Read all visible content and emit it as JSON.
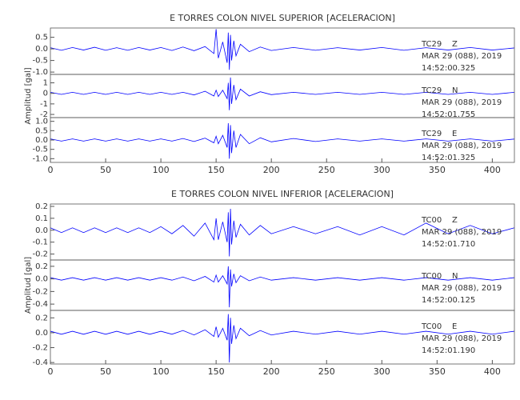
{
  "chart_data": [
    {
      "type": "line",
      "title": "E TORRES COLON NIVEL SUPERIOR [ACELERACION]",
      "color": "#0000ff",
      "annotations": [
        "TC29    Z",
        "MAR 29 (088), 2019",
        "14:52:00.325"
      ],
      "x": [
        0,
        10,
        20,
        30,
        40,
        50,
        60,
        70,
        80,
        90,
        100,
        110,
        120,
        130,
        140,
        148,
        150,
        152,
        156,
        160,
        161,
        162,
        163,
        164,
        166,
        168,
        172,
        180,
        190,
        200,
        220,
        240,
        260,
        280,
        300,
        320,
        340,
        360,
        380,
        400,
        420
      ],
      "values": [
        0.05,
        -0.06,
        0.06,
        -0.05,
        0.07,
        -0.06,
        0.05,
        -0.06,
        0.06,
        -0.05,
        0.06,
        -0.07,
        0.08,
        -0.08,
        0.1,
        -0.2,
        0.85,
        -0.4,
        0.3,
        -0.6,
        0.7,
        -0.9,
        0.6,
        -0.5,
        0.35,
        -0.3,
        0.2,
        -0.12,
        0.08,
        -0.07,
        0.06,
        -0.06,
        0.05,
        -0.05,
        0.06,
        -0.06,
        0.05,
        -0.05,
        0.06,
        -0.05,
        0.04
      ],
      "xlim": [
        0,
        420
      ],
      "ylim": [
        -1.1,
        0.9
      ],
      "yticks": [
        {
          "value": -1.0,
          "label": "-1.0"
        },
        -0.5,
        {
          "value": 0.0,
          "label": "0.0"
        },
        0.5
      ]
    },
    {
      "type": "line",
      "color": "#0000ff",
      "ylabel": "Amplitud [gal]",
      "annotations": [
        "TC29    N",
        "MAR 29 (088), 2019",
        "14:52:01.755"
      ],
      "x": [
        0,
        10,
        20,
        30,
        40,
        50,
        60,
        70,
        80,
        90,
        100,
        110,
        120,
        130,
        140,
        148,
        150,
        152,
        156,
        160,
        161,
        162,
        163,
        164,
        166,
        168,
        172,
        180,
        190,
        200,
        220,
        240,
        260,
        280,
        300,
        320,
        340,
        360,
        380,
        400,
        420
      ],
      "values": [
        0.1,
        -0.1,
        0.1,
        -0.1,
        0.1,
        -0.1,
        0.1,
        -0.1,
        0.1,
        -0.1,
        0.1,
        -0.1,
        0.1,
        -0.15,
        0.2,
        -0.25,
        0.3,
        -0.3,
        0.3,
        -0.5,
        1.0,
        -1.6,
        1.5,
        -1.0,
        0.8,
        -0.6,
        0.4,
        -0.25,
        0.15,
        -0.12,
        0.1,
        -0.1,
        0.1,
        -0.1,
        0.1,
        -0.1,
        0.1,
        -0.1,
        0.1,
        -0.1,
        0.1
      ],
      "xlim": [
        0,
        420
      ],
      "ylim": [
        -2.3,
        1.8
      ],
      "yticks": [
        -2,
        -1,
        0,
        1
      ]
    },
    {
      "type": "line",
      "color": "#0000ff",
      "annotations": [
        "TC29    E",
        "MAR 29 (088), 2019",
        "14:52:01.325"
      ],
      "x": [
        0,
        10,
        20,
        30,
        40,
        50,
        60,
        70,
        80,
        90,
        100,
        110,
        120,
        130,
        140,
        148,
        150,
        152,
        156,
        160,
        161,
        162,
        163,
        164,
        166,
        168,
        172,
        180,
        190,
        200,
        220,
        240,
        260,
        280,
        300,
        320,
        340,
        360,
        380,
        400,
        420
      ],
      "values": [
        0.06,
        -0.06,
        0.06,
        -0.06,
        0.06,
        -0.06,
        0.06,
        -0.06,
        0.06,
        -0.06,
        0.06,
        -0.06,
        0.08,
        -0.08,
        0.1,
        -0.15,
        0.2,
        -0.2,
        0.25,
        -0.4,
        0.9,
        -1.0,
        0.8,
        -0.7,
        0.5,
        -0.4,
        0.3,
        -0.2,
        0.12,
        -0.1,
        0.08,
        -0.08,
        0.06,
        -0.06,
        0.06,
        -0.06,
        0.06,
        -0.06,
        0.06,
        -0.06,
        0.05
      ],
      "xlim": [
        0,
        420
      ],
      "ylim": [
        -1.2,
        1.2
      ],
      "yticks": [
        {
          "value": -1.0,
          "label": "-1.0"
        },
        -0.5,
        {
          "value": 0.0,
          "label": "0.0"
        },
        0.5,
        {
          "value": 1.0,
          "label": "1.0"
        }
      ],
      "xticks": [
        0,
        50,
        100,
        150,
        200,
        250,
        300,
        350,
        400
      ]
    },
    {
      "type": "line",
      "title": "E TORRES COLON NIVEL INFERIOR [ACELERACION]",
      "color": "#0000ff",
      "annotations": [
        "TC00    Z",
        "MAR 29 (088), 2019",
        "14:52:01.710"
      ],
      "x": [
        0,
        10,
        20,
        30,
        40,
        50,
        60,
        70,
        80,
        90,
        100,
        110,
        120,
        130,
        140,
        148,
        150,
        152,
        156,
        160,
        161,
        162,
        163,
        164,
        166,
        168,
        172,
        180,
        190,
        200,
        220,
        240,
        260,
        280,
        300,
        320,
        340,
        360,
        380,
        400,
        420
      ],
      "values": [
        0.02,
        -0.02,
        0.02,
        -0.02,
        0.02,
        -0.02,
        0.02,
        -0.02,
        0.02,
        -0.02,
        0.03,
        -0.03,
        0.04,
        -0.05,
        0.06,
        -0.08,
        0.1,
        -0.08,
        0.07,
        -0.1,
        0.15,
        -0.22,
        0.18,
        -0.12,
        0.08,
        -0.06,
        0.05,
        -0.04,
        0.04,
        -0.03,
        0.03,
        -0.03,
        0.03,
        -0.04,
        0.03,
        -0.04,
        0.06,
        -0.03,
        0.04,
        -0.03,
        0.02
      ],
      "xlim": [
        0,
        420
      ],
      "ylim": [
        -0.25,
        0.22
      ],
      "yticks": [
        -0.2,
        -0.1,
        {
          "value": 0.0,
          "label": "0.0"
        },
        0.1,
        0.2
      ]
    },
    {
      "type": "line",
      "color": "#0000ff",
      "ylabel": "Amplitud [gal]",
      "annotations": [
        "TC00    N",
        "MAR 29 (088), 2019",
        "14:52:00.125"
      ],
      "x": [
        0,
        10,
        20,
        30,
        40,
        50,
        60,
        70,
        80,
        90,
        100,
        110,
        120,
        130,
        140,
        148,
        150,
        152,
        156,
        160,
        161,
        162,
        163,
        164,
        166,
        168,
        172,
        180,
        190,
        200,
        220,
        240,
        260,
        280,
        300,
        320,
        340,
        360,
        380,
        400,
        420
      ],
      "values": [
        0.02,
        -0.02,
        0.02,
        -0.02,
        0.02,
        -0.02,
        0.02,
        -0.02,
        0.02,
        -0.02,
        0.02,
        -0.02,
        0.03,
        -0.03,
        0.04,
        -0.05,
        0.06,
        -0.05,
        0.05,
        -0.08,
        0.2,
        -0.45,
        0.15,
        -0.12,
        0.08,
        -0.06,
        0.05,
        -0.03,
        0.03,
        -0.02,
        0.02,
        -0.02,
        0.02,
        -0.02,
        0.02,
        -0.02,
        0.02,
        -0.02,
        0.02,
        -0.02,
        0.02
      ],
      "xlim": [
        0,
        420
      ],
      "ylim": [
        -0.5,
        0.3
      ],
      "yticks": [
        -0.4,
        -0.2,
        {
          "value": 0.0,
          "label": "0.0"
        },
        0.2
      ]
    },
    {
      "type": "line",
      "color": "#0000ff",
      "annotations": [
        "TC00    E",
        "MAR 29 (088), 2019",
        "14:52:01.190"
      ],
      "x": [
        0,
        10,
        20,
        30,
        40,
        50,
        60,
        70,
        80,
        90,
        100,
        110,
        120,
        130,
        140,
        148,
        150,
        152,
        156,
        160,
        161,
        162,
        163,
        164,
        166,
        168,
        172,
        180,
        190,
        200,
        220,
        240,
        260,
        280,
        300,
        320,
        340,
        360,
        380,
        400,
        420
      ],
      "values": [
        0.02,
        -0.02,
        0.02,
        -0.02,
        0.02,
        -0.02,
        0.02,
        -0.02,
        0.02,
        -0.02,
        0.02,
        -0.02,
        0.03,
        -0.03,
        0.04,
        -0.05,
        0.08,
        -0.06,
        0.06,
        -0.1,
        0.25,
        -0.4,
        0.2,
        -0.15,
        0.1,
        -0.08,
        0.06,
        -0.04,
        0.03,
        -0.03,
        0.02,
        -0.02,
        0.02,
        -0.02,
        0.02,
        -0.02,
        0.02,
        -0.02,
        0.02,
        -0.02,
        0.02
      ],
      "xlim": [
        0,
        420
      ],
      "ylim": [
        -0.42,
        0.3
      ],
      "yticks": [
        -0.4,
        -0.2,
        {
          "value": 0.0,
          "label": "0.0"
        },
        0.2
      ],
      "xticks": [
        0,
        50,
        100,
        150,
        200,
        250,
        300,
        350,
        400
      ]
    }
  ]
}
